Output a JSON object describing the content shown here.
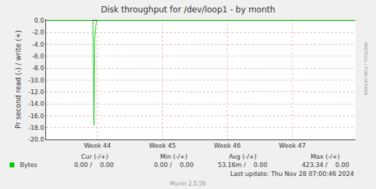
{
  "chart_data": {
    "type": "line",
    "title": "Disk throughput for /dev/loop1 - by month",
    "y_label": "Pr second read (-) / write (+)",
    "side_text": "RRDTOOL / TOBI OETIKER",
    "x": [
      43.21,
      43.93,
      43.947,
      43.958,
      43.968,
      43.989,
      47.97
    ],
    "series": [
      {
        "name": "Bytes",
        "color": "#00cc00",
        "values": [
          0,
          0,
          -17.6,
          -3.2,
          -1.5,
          0,
          0
        ]
      }
    ],
    "xlim": [
      43.21,
      47.97
    ],
    "xticks": [
      {
        "value": 44,
        "label": "Week 44"
      },
      {
        "value": 45,
        "label": "Week 45"
      },
      {
        "value": 46,
        "label": "Week 46"
      },
      {
        "value": 47,
        "label": "Week 47"
      }
    ],
    "ylim": [
      -20,
      0.2
    ],
    "yticks": [
      {
        "value": 0,
        "label": "0.0"
      },
      {
        "value": -2,
        "label": "-2.0"
      },
      {
        "value": -4,
        "label": "-4.0"
      },
      {
        "value": -6,
        "label": "-6.0"
      },
      {
        "value": -8,
        "label": "-8.0"
      },
      {
        "value": -10,
        "label": "-10.0"
      },
      {
        "value": -12,
        "label": "-12.0"
      },
      {
        "value": -14,
        "label": "-14.0"
      },
      {
        "value": -16,
        "label": "-16.0"
      },
      {
        "value": -18,
        "label": "-18.0"
      },
      {
        "value": -20,
        "label": "-20.0"
      }
    ],
    "grid": true,
    "summary": {
      "columns": [
        "Cur (-/+)",
        "Min (-/+)",
        "Avg (-/+)",
        "Max (-/+)"
      ],
      "rows": [
        {
          "series": "Bytes",
          "cells": [
            "0.00 /    0.00",
            "0.00 /    0.00",
            "53.16m /    0.00",
            "423.34 /    0.00"
          ]
        }
      ],
      "last_update": "Last update: Thu Nov 28 07:00:46 2024"
    },
    "credit": "Munin 2.0.56"
  }
}
